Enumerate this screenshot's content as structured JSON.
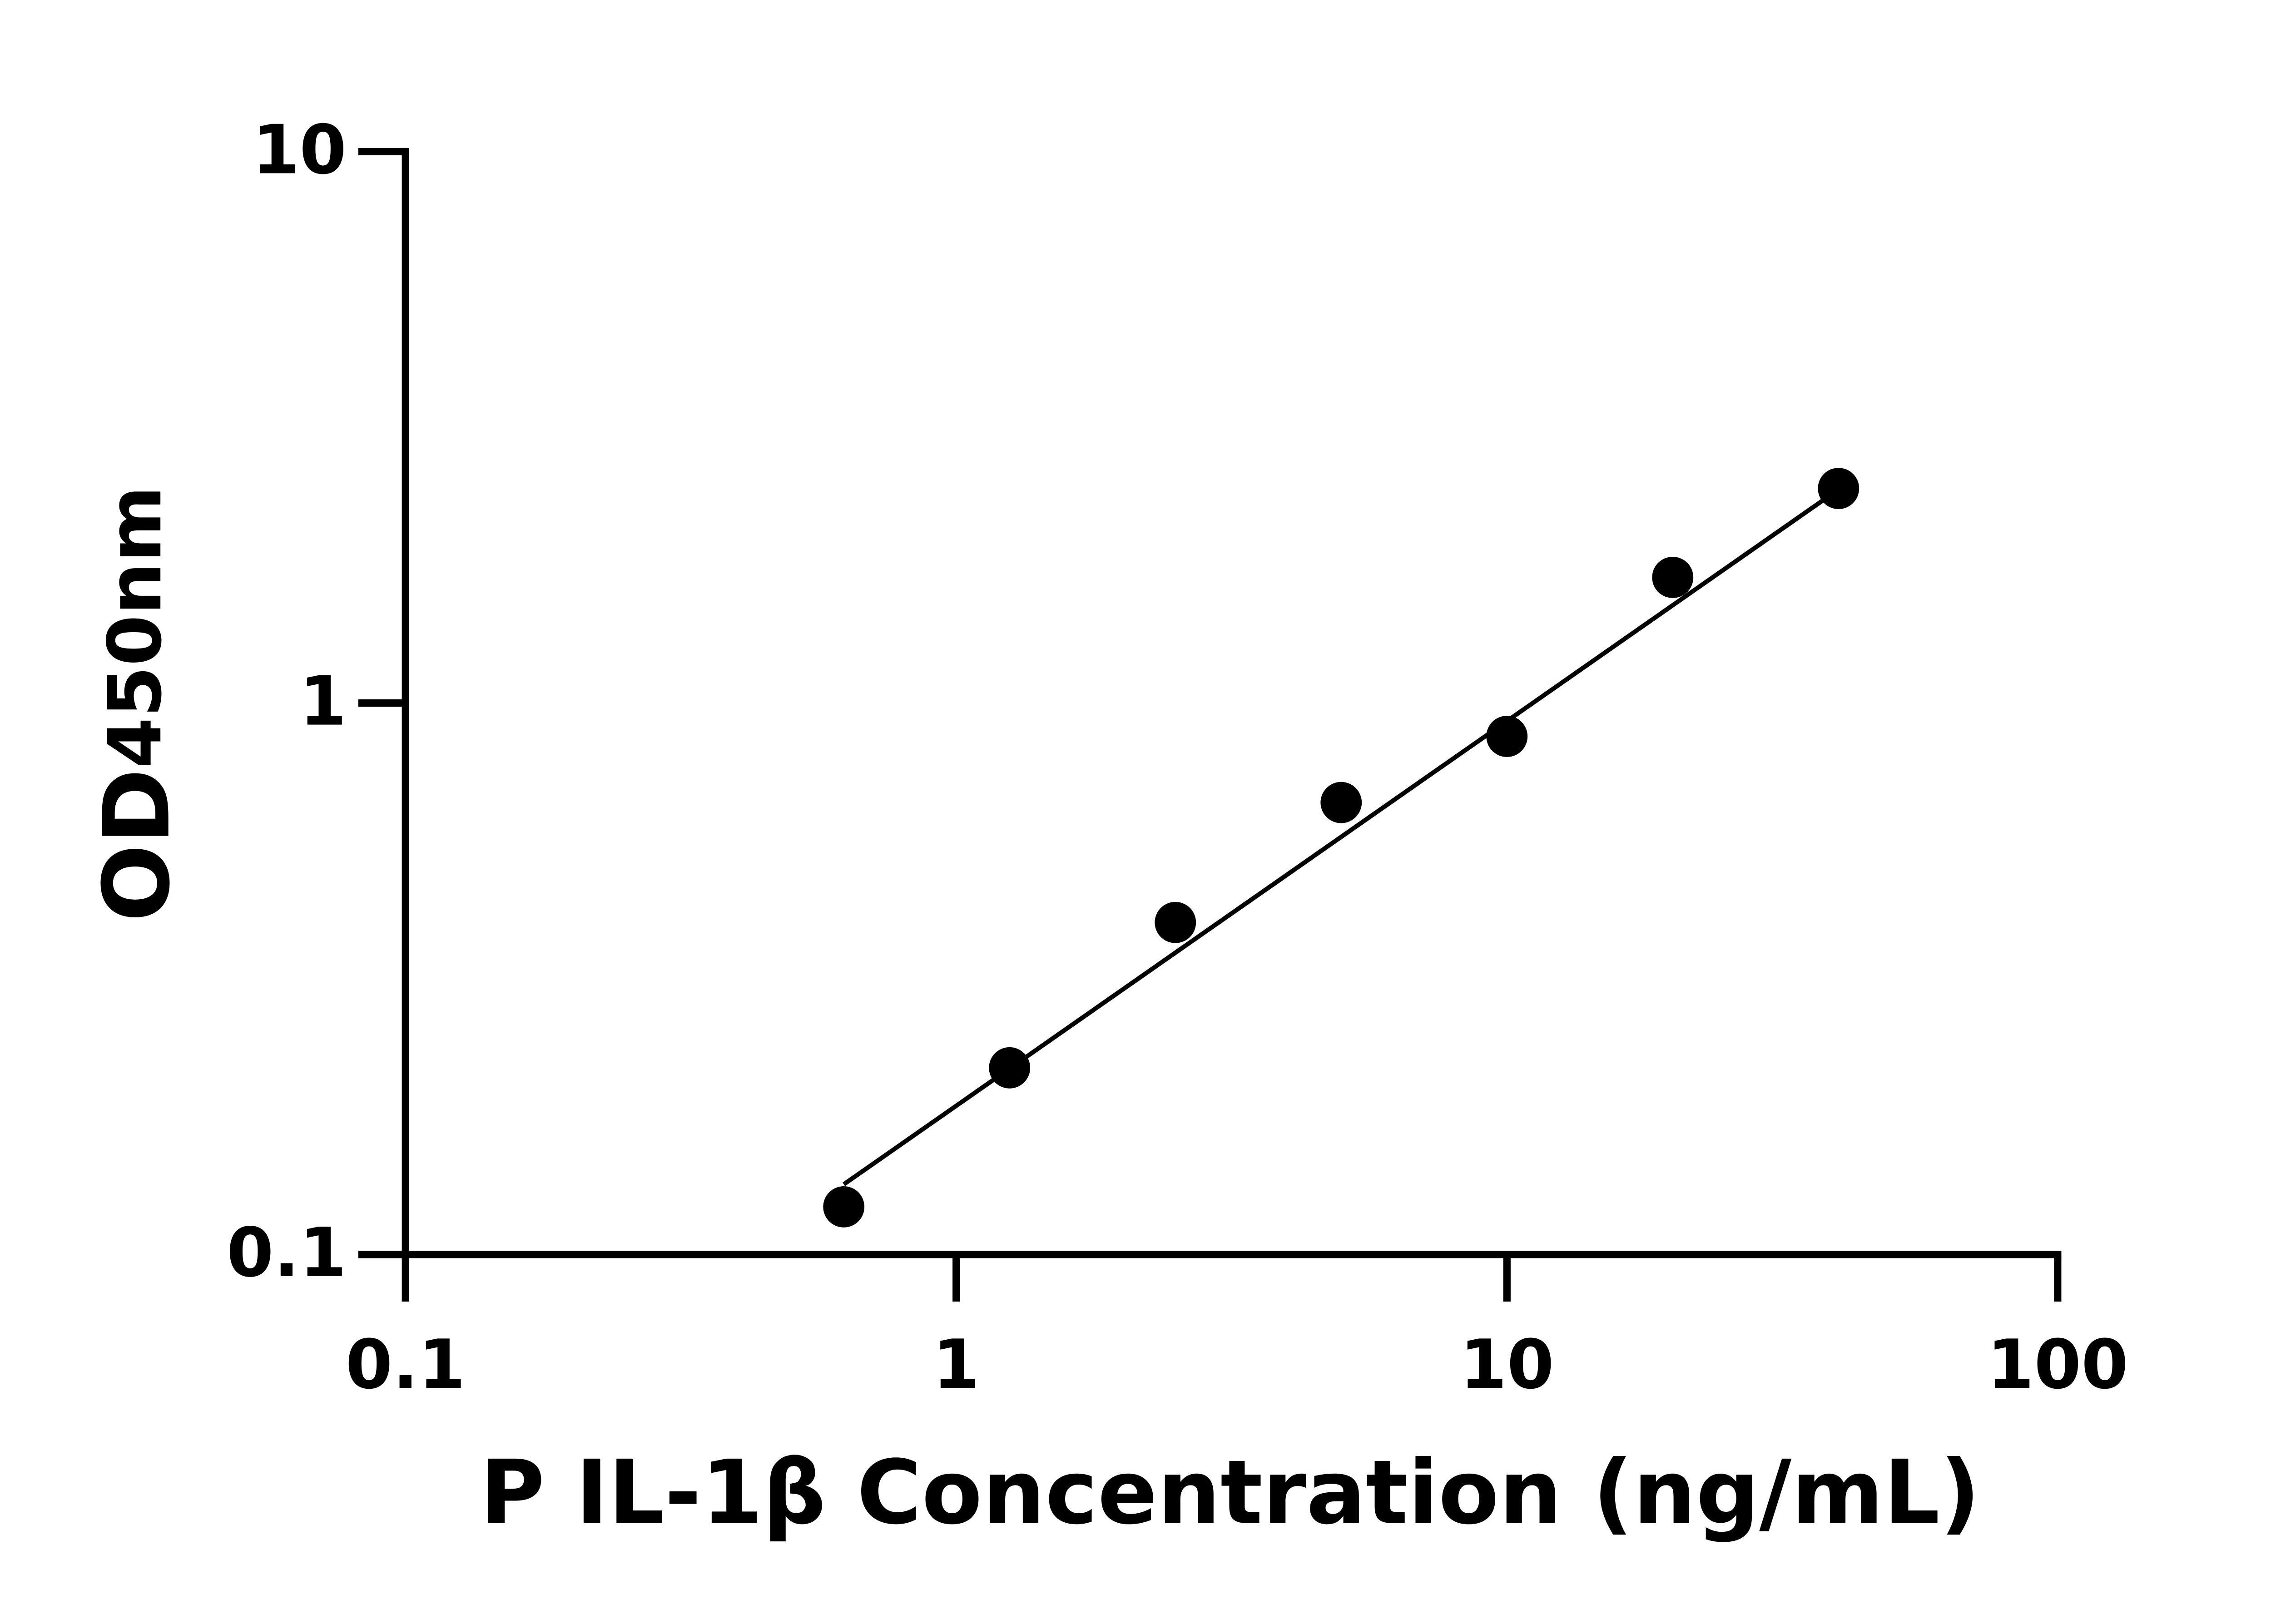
{
  "chart_data": {
    "type": "scatter",
    "xlabel": "P IL-1β Concentration (ng/mL)",
    "ylabel": {
      "main": "OD",
      "sub": "450nm"
    },
    "xscale": "log",
    "yscale": "log",
    "xlim": [
      0.1,
      100
    ],
    "ylim": [
      0.1,
      10
    ],
    "xticks": [
      0.1,
      1,
      10,
      100
    ],
    "yticks": [
      0.1,
      1,
      10
    ],
    "grid": false,
    "color": "#000000",
    "x": [
      0.625,
      1.25,
      2.5,
      5,
      10,
      20,
      40
    ],
    "values": [
      0.122,
      0.218,
      0.4,
      0.66,
      0.87,
      1.69,
      2.45
    ],
    "fit_line": {
      "x": [
        0.625,
        40
      ],
      "y": [
        0.134,
        2.44
      ]
    }
  }
}
